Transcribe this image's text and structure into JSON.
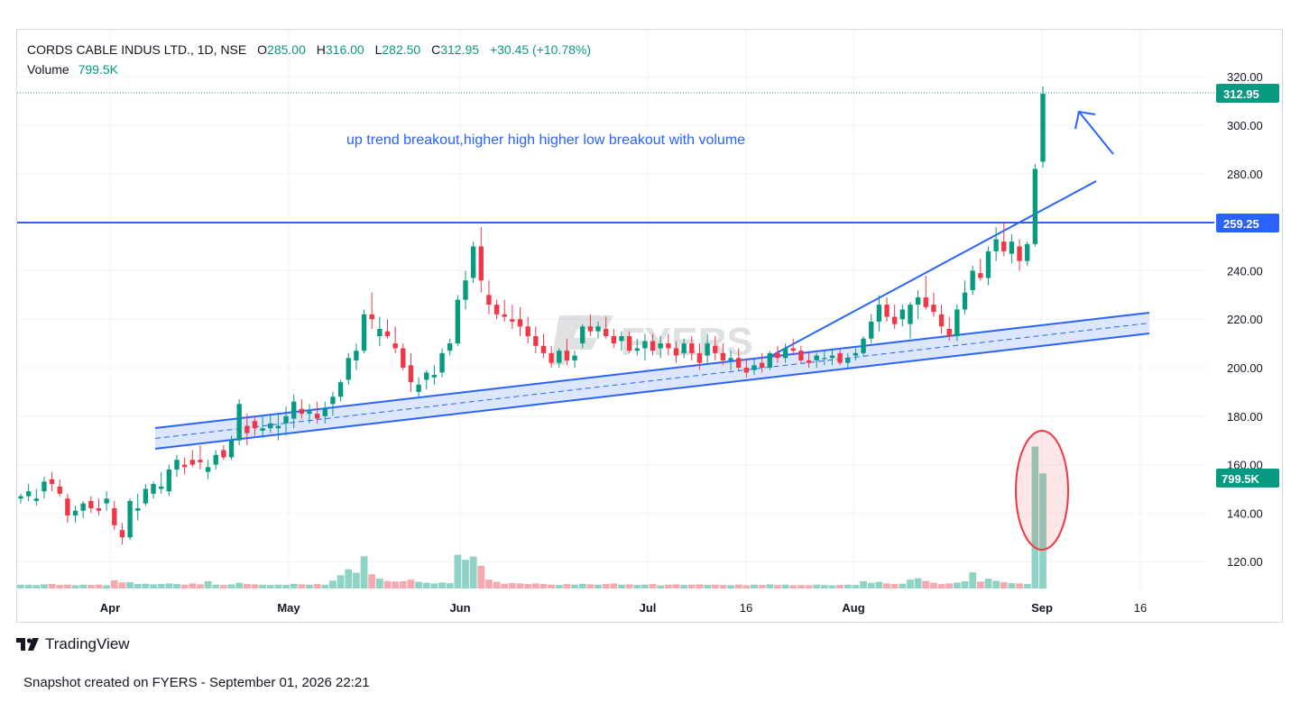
{
  "header": {
    "symbol": "CORDS CABLE INDUS LTD., 1D, NSE",
    "o_label": "O",
    "o_value": "285.00",
    "h_label": "H",
    "h_value": "316.00",
    "l_label": "L",
    "l_value": "282.50",
    "c_label": "C",
    "c_value": "312.95",
    "change": "+30.45 (+10.78%)",
    "volume_label": "Volume",
    "volume_value": "799.5K"
  },
  "annotation": "up trend breakout,higher high higher low breakout with volume",
  "price_labels": {
    "last": "312.95",
    "resistance": "259.25",
    "volume": "799.5K"
  },
  "brand": "TradingView",
  "watermark": "FYERS",
  "footer": "Snapshot created on FYERS - September 01, 2026 22:21",
  "colors": {
    "up": "#089981",
    "down": "#f23645",
    "line": "#2962ff",
    "channel_fill": "#d6e2fb",
    "vol_up": "#8fd3c4",
    "vol_down": "#f6a9ae"
  },
  "chart_data": {
    "type": "candlestick",
    "title": "CORDS CABLE INDUS LTD., 1D, NSE",
    "y_ticks": [
      "120.00",
      "140.00",
      "160.00",
      "180.00",
      "200.00",
      "220.00",
      "240.00",
      "260.00",
      "280.00",
      "300.00",
      "320.00"
    ],
    "ylim": [
      108,
      330
    ],
    "x_ticks": [
      "Apr",
      "May",
      "Jun",
      "Jul",
      "16",
      "Aug",
      "Sep",
      "16"
    ],
    "resistance_level": 259.25,
    "last_price": 312.95,
    "ohlcv": [
      [
        146,
        148,
        144,
        147,
        1.2
      ],
      [
        147,
        152,
        145,
        149,
        1.2
      ],
      [
        145,
        150,
        143,
        146,
        1.1
      ],
      [
        149,
        155,
        146,
        153,
        1.3
      ],
      [
        154,
        157,
        149,
        152,
        1.4
      ],
      [
        151,
        154,
        147,
        148,
        1.1
      ],
      [
        146,
        148,
        136,
        139,
        1.2
      ],
      [
        139,
        143,
        136,
        141,
        1.0
      ],
      [
        141,
        145,
        138,
        144,
        1.2
      ],
      [
        145,
        147,
        140,
        142,
        1.1
      ],
      [
        142,
        146,
        139,
        141,
        1.2
      ],
      [
        144,
        149,
        141,
        146,
        1.0
      ],
      [
        142,
        145,
        133,
        135,
        2.6
      ],
      [
        133,
        136,
        127,
        130,
        1.9
      ],
      [
        130,
        146,
        129,
        145,
        2.0
      ],
      [
        141,
        148,
        137,
        142,
        1.4
      ],
      [
        144,
        152,
        143,
        150,
        1.5
      ],
      [
        148,
        153,
        146,
        152,
        1.3
      ],
      [
        150,
        157,
        148,
        151,
        1.4
      ],
      [
        149,
        160,
        147,
        158,
        1.6
      ],
      [
        158,
        164,
        155,
        162,
        1.4
      ],
      [
        160,
        163,
        156,
        159,
        1.2
      ],
      [
        162,
        166,
        159,
        160,
        1.6
      ],
      [
        162,
        168,
        158,
        161,
        1.3
      ],
      [
        157,
        162,
        154,
        159,
        2.3
      ],
      [
        160,
        166,
        158,
        164,
        1.2
      ],
      [
        166,
        168,
        162,
        163,
        1.1
      ],
      [
        163,
        172,
        162,
        170,
        1.3
      ],
      [
        170,
        187,
        168,
        185,
        1.8
      ],
      [
        176,
        181,
        168,
        173,
        1.4
      ],
      [
        178,
        180,
        172,
        175,
        1.3
      ],
      [
        174,
        180,
        171,
        175,
        1.2
      ],
      [
        175,
        181,
        173,
        177,
        1.1
      ],
      [
        175,
        181,
        170,
        176,
        1.2
      ],
      [
        177,
        184,
        172,
        180,
        1.1
      ],
      [
        179,
        189,
        175,
        186,
        1.5
      ],
      [
        183,
        187,
        179,
        181,
        1.3
      ],
      [
        181,
        185,
        177,
        182,
        1.2
      ],
      [
        181,
        186,
        177,
        179,
        1.4
      ],
      [
        180,
        186,
        177,
        183,
        1.2
      ],
      [
        185,
        190,
        180,
        188,
        2.5
      ],
      [
        188,
        195,
        186,
        194,
        4.2
      ],
      [
        195,
        206,
        193,
        204,
        6.1
      ],
      [
        203,
        210,
        199,
        207,
        5.0
      ],
      [
        207,
        224,
        206,
        222,
        10.2
      ],
      [
        222,
        231,
        216,
        220,
        4.5
      ],
      [
        213,
        221,
        209,
        216,
        3.1
      ],
      [
        215,
        220,
        212,
        213,
        2.4
      ],
      [
        210,
        217,
        206,
        208,
        2.2
      ],
      [
        208,
        210,
        199,
        200,
        2.3
      ],
      [
        201,
        206,
        190,
        194,
        2.8
      ],
      [
        190,
        196,
        188,
        193,
        2.1
      ],
      [
        195,
        199,
        191,
        198,
        1.8
      ],
      [
        196,
        201,
        193,
        197,
        1.6
      ],
      [
        198,
        208,
        196,
        206,
        1.9
      ],
      [
        207,
        212,
        205,
        210,
        1.7
      ],
      [
        210,
        230,
        209,
        228,
        10.7
      ],
      [
        228,
        240,
        224,
        236,
        9.1
      ],
      [
        237,
        252,
        235,
        250,
        10.1
      ],
      [
        250,
        258,
        231,
        236,
        7.2
      ],
      [
        230,
        236,
        222,
        226,
        2.8
      ],
      [
        226,
        228,
        220,
        222,
        2.1
      ],
      [
        222,
        228,
        219,
        221,
        1.5
      ],
      [
        220,
        226,
        216,
        219,
        1.7
      ],
      [
        220,
        225,
        213,
        217,
        1.6
      ],
      [
        217,
        221,
        210,
        213,
        1.4
      ],
      [
        213,
        217,
        206,
        209,
        1.6
      ],
      [
        209,
        214,
        204,
        206,
        1.4
      ],
      [
        206,
        209,
        200,
        202,
        1.2
      ],
      [
        202,
        208,
        200,
        207,
        1.1
      ],
      [
        207,
        212,
        201,
        203,
        1.4
      ],
      [
        203,
        207,
        200,
        205,
        1.2
      ],
      [
        210,
        218,
        208,
        217,
        1.5
      ],
      [
        217,
        222,
        213,
        215,
        1.3
      ],
      [
        215,
        219,
        212,
        217,
        1.2
      ],
      [
        216,
        221,
        212,
        213,
        1.4
      ],
      [
        213,
        216,
        208,
        210,
        1.6
      ],
      [
        211,
        215,
        207,
        213,
        1.2
      ],
      [
        213,
        215,
        206,
        207,
        1.3
      ],
      [
        207,
        212,
        205,
        208,
        1.1
      ],
      [
        208,
        214,
        203,
        211,
        1.2
      ],
      [
        211,
        214,
        205,
        207,
        1.4
      ],
      [
        208,
        213,
        204,
        210,
        1.0
      ],
      [
        210,
        214,
        205,
        208,
        1.2
      ],
      [
        208,
        211,
        202,
        205,
        1.3
      ],
      [
        206,
        212,
        204,
        210,
        1.1
      ],
      [
        210,
        213,
        203,
        206,
        1.2
      ],
      [
        206,
        210,
        199,
        202,
        1.3
      ],
      [
        205,
        214,
        201,
        210,
        1.1
      ],
      [
        209,
        213,
        203,
        206,
        1.2
      ],
      [
        206,
        210,
        201,
        203,
        1.1
      ],
      [
        203,
        207,
        199,
        204,
        1.0
      ],
      [
        204,
        208,
        199,
        200,
        1.2
      ],
      [
        200,
        204,
        196,
        198,
        1.0
      ],
      [
        199,
        204,
        197,
        201,
        1.2
      ],
      [
        202,
        206,
        198,
        200,
        1.1
      ],
      [
        200,
        207,
        199,
        206,
        1.3
      ],
      [
        206,
        209,
        202,
        204,
        1.1
      ],
      [
        204,
        210,
        202,
        208,
        1.2
      ],
      [
        208,
        212,
        205,
        207,
        1.0
      ],
      [
        207,
        209,
        202,
        203,
        1.1
      ],
      [
        203,
        206,
        200,
        202,
        1.0
      ],
      [
        203,
        206,
        200,
        205,
        1.2
      ],
      [
        204,
        207,
        201,
        204,
        1.1
      ],
      [
        204,
        208,
        201,
        205,
        1.0
      ],
      [
        206,
        208,
        201,
        202,
        1.1
      ],
      [
        202,
        206,
        200,
        204,
        1.2
      ],
      [
        205,
        208,
        203,
        206,
        1.1
      ],
      [
        206,
        213,
        205,
        212,
        2.3
      ],
      [
        212,
        222,
        210,
        219,
        1.8
      ],
      [
        219,
        230,
        215,
        226,
        2.1
      ],
      [
        226,
        229,
        219,
        221,
        1.6
      ],
      [
        221,
        226,
        216,
        218,
        1.4
      ],
      [
        220,
        226,
        217,
        224,
        1.5
      ],
      [
        218,
        227,
        212,
        226,
        2.8
      ],
      [
        226,
        232,
        220,
        229,
        3.2
      ],
      [
        229,
        238,
        224,
        225,
        2.4
      ],
      [
        226,
        231,
        221,
        223,
        1.8
      ],
      [
        222,
        226,
        214,
        217,
        1.4
      ],
      [
        216,
        221,
        211,
        213,
        1.6
      ],
      [
        213,
        226,
        211,
        224,
        1.9
      ],
      [
        224,
        236,
        222,
        231,
        2.3
      ],
      [
        232,
        242,
        230,
        240,
        5.1
      ],
      [
        239,
        245,
        236,
        237,
        2.2
      ],
      [
        237,
        250,
        234,
        248,
        3.1
      ],
      [
        248,
        258,
        244,
        253,
        2.4
      ],
      [
        252,
        260,
        246,
        248,
        2.0
      ],
      [
        247,
        255,
        243,
        252,
        1.7
      ],
      [
        250,
        253,
        240,
        244,
        1.6
      ],
      [
        244,
        252,
        242,
        251,
        1.4
      ],
      [
        251,
        284,
        250,
        282,
        45.0
      ],
      [
        285,
        316,
        282.5,
        312.95,
        36.5
      ]
    ]
  }
}
